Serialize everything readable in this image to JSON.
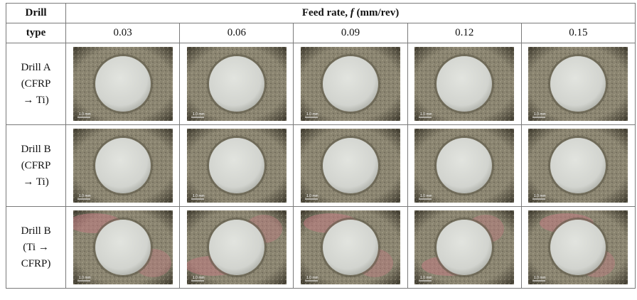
{
  "header": {
    "drill_label_line1": "Drill",
    "drill_label_line2": "type",
    "feed_prefix": "Feed rate, ",
    "feed_symbol": "f",
    "feed_unit": " (mm/rev)"
  },
  "feed_rates": [
    "0.03",
    "0.06",
    "0.09",
    "0.12",
    "0.15"
  ],
  "rows": [
    {
      "lines": [
        "Drill A",
        "(CFRP",
        "→ Ti)"
      ],
      "reddish": false,
      "scale_label": "1.0 mm"
    },
    {
      "lines": [
        "Drill B",
        "(CFRP",
        "→ Ti)"
      ],
      "reddish": false,
      "scale_label": "1.0 mm"
    },
    {
      "lines": [
        "Drill B",
        "(Ti →",
        "CFRP)"
      ],
      "reddish": true,
      "scale_label": "1.0 mm"
    }
  ],
  "colors": {
    "border": "#7a7a7a",
    "surface": "#8a8470",
    "surface_dark": "#3e3a2e",
    "hole": "#d2d4cf",
    "reddish": "#c47a82"
  }
}
